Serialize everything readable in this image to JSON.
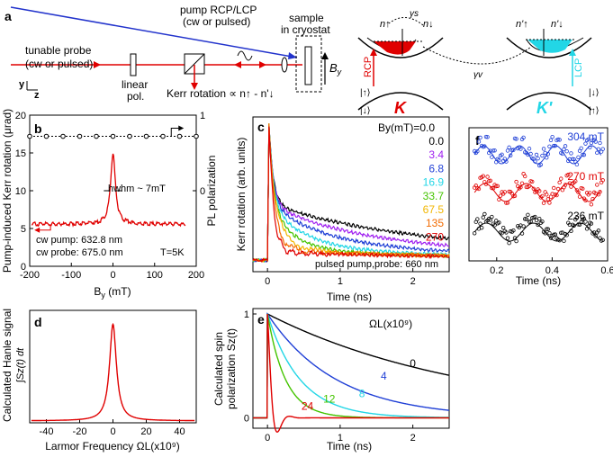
{
  "panel_labels": {
    "a": "a",
    "b": "b",
    "c": "c",
    "d": "d",
    "e": "e",
    "f": "f"
  },
  "panel_a": {
    "pump_label_1": "pump RCP/LCP",
    "pump_label_2": "(cw or pulsed)",
    "sample_label_1": "sample",
    "sample_label_2": "in cryostat",
    "probe_label_1": "tunable probe",
    "probe_label_2": "(cw or pulsed)",
    "linear_label_1": "linear",
    "linear_label_2": "pol.",
    "kerr_label": "Kerr rotation ∝ n↑ - n'↓",
    "field_label": "B",
    "field_sub": "y",
    "axis_y": "y",
    "axis_z": "z",
    "n_up": "n↑",
    "n_down": "n↓",
    "n_up_p": "n'↑",
    "n_down_p": "n'↓",
    "gamma_s": "γs",
    "gamma_v": "γv",
    "rcp": "RCP",
    "lcp": "LCP",
    "ket_up": "|↑⟩",
    "ket_down": "|↓⟩",
    "valley_k": "K",
    "valley_kp": "K'"
  },
  "panel_b": {
    "ylabel": "Pump-induced Kerr rotation (μrad)",
    "xlabel": "B",
    "xlabel_sub": "y",
    "xlabel_unit": " (mT)",
    "right_ylabel": "PL polarization",
    "annotation_hwhm": "hwhm ~ 7mT",
    "note_pump": "cw pump: 632.8 nm",
    "note_probe": "cw probe: 675.0 nm",
    "note_temp": "T=5K"
  },
  "panel_c": {
    "ylabel": "Kerr rotation (arb. units)",
    "xlabel": "Time (ns)",
    "legend_title": "By(mT)=0.0",
    "note": "pulsed pump,probe: 660 nm"
  },
  "panel_d": {
    "ylabel_1": "Calculated Hanle signal",
    "ylabel_2": "∫Sz(t) dt",
    "xlabel": "Larmor Frequency ΩL(x10⁹)"
  },
  "panel_e": {
    "ylabel_1": "Calculated spin",
    "ylabel_2": "polarization Sz(t)",
    "xlabel": "Time (ns)",
    "legend_title": "ΩL(x10⁹)"
  },
  "panel_f": {
    "xlabel": "Time (ns)"
  },
  "chart_data": [
    {
      "id": "b",
      "type": "line",
      "title": "",
      "xlabel": "By (mT)",
      "ylabel": "Pump-induced Kerr rotation (μrad)",
      "xlim": [
        -200,
        200
      ],
      "ylim": [
        0,
        20
      ],
      "xticks": [
        -200,
        -100,
        0,
        100,
        200
      ],
      "yticks": [
        0,
        5,
        10,
        15,
        20
      ],
      "right_axis": {
        "label": "PL polarization",
        "ylim": [
          -1,
          1
        ],
        "ticks": [
          -1,
          0,
          1
        ],
        "tick_labels": [
          "",
          "0",
          "1"
        ]
      },
      "series": [
        {
          "name": "Kerr rotation",
          "color": "#e00000",
          "model": "lorentzian",
          "baseline": 5.7,
          "amplitude": 9.3,
          "center": 0,
          "hwhm_mT": 7
        },
        {
          "name": "PL polarization",
          "color": "#000000",
          "axis": "right",
          "marker": "circle",
          "x": [
            -200,
            -160,
            -120,
            -80,
            -40,
            0,
            40,
            80,
            120,
            160,
            200
          ],
          "y": [
            0.72,
            0.72,
            0.72,
            0.72,
            0.72,
            0.72,
            0.72,
            0.72,
            0.72,
            0.72,
            0.72
          ]
        }
      ]
    },
    {
      "id": "c",
      "type": "line",
      "xlabel": "Time (ns)",
      "ylabel": "Kerr rotation (arb. units)",
      "xlim": [
        -0.2,
        2.5
      ],
      "xticks": [
        0,
        1,
        2
      ],
      "ylim": [
        -0.08,
        1.0
      ],
      "series": [
        {
          "name": "0.0",
          "color": "#000000",
          "field_mT": 0.0,
          "tau": 1.4,
          "floor": 0.24
        },
        {
          "name": "3.4",
          "color": "#a020f0",
          "field_mT": 3.4,
          "tau": 1.05,
          "floor": 0.16
        },
        {
          "name": "6.8",
          "color": "#1f3fd6",
          "field_mT": 6.8,
          "tau": 0.75,
          "floor": 0.11
        },
        {
          "name": "16.9",
          "color": "#22d6e6",
          "field_mT": 16.9,
          "tau": 0.5,
          "floor": 0.08
        },
        {
          "name": "33.7",
          "color": "#44c400",
          "field_mT": 33.7,
          "tau": 0.33,
          "floor": 0.07
        },
        {
          "name": "67.5",
          "color": "#f2b600",
          "field_mT": 67.5,
          "tau": 0.22,
          "floor": 0.07
        },
        {
          "name": "135",
          "color": "#f26a00",
          "field_mT": 135,
          "tau": 0.13,
          "floor": 0.07
        },
        {
          "name": "270",
          "color": "#e00000",
          "field_mT": 270,
          "tau": 0.07,
          "floor": 0.06
        }
      ]
    },
    {
      "id": "d",
      "type": "line",
      "xlabel": "Larmor Frequency ΩL(x10⁹)",
      "ylabel": "Calculated Hanle signal ∫Sz(t) dt",
      "xlim": [
        -50,
        50
      ],
      "xticks": [
        -40,
        -20,
        0,
        20,
        40
      ],
      "ylim": [
        0,
        1.05
      ],
      "series": [
        {
          "name": "Hanle",
          "color": "#e00000",
          "model": "lorentzian",
          "baseline": 0.02,
          "amplitude": 0.98,
          "center": 0,
          "hwhm": 2.5
        }
      ]
    },
    {
      "id": "e",
      "type": "line",
      "xlabel": "Time (ns)",
      "ylabel": "Calculated spin polarization Sz(t)",
      "xlim": [
        -0.2,
        2.5
      ],
      "xticks": [
        0,
        1,
        2
      ],
      "ylim": [
        -0.1,
        1.0
      ],
      "series": [
        {
          "name": "0",
          "color": "#000000",
          "omega": 0,
          "tau": 2.8
        },
        {
          "name": "4",
          "color": "#1f3fd6",
          "omega": 4,
          "tau": 0.95
        },
        {
          "name": "8",
          "color": "#22d6e6",
          "omega": 8,
          "tau": 0.45
        },
        {
          "name": "12",
          "color": "#44c400",
          "omega": 12,
          "tau": 0.25
        },
        {
          "name": "24",
          "color": "#e00000",
          "omega": 24,
          "tau": 0.075
        }
      ]
    },
    {
      "id": "f",
      "type": "scatter",
      "xlabel": "Time (ns)",
      "xlim": [
        0.1,
        0.6
      ],
      "xticks": [
        0.2,
        0.4,
        0.6
      ],
      "series": [
        {
          "name": "304 mT",
          "color": "#1f3fd6",
          "field_mT": 304,
          "period_ns": 0.13
        },
        {
          "name": "270 mT",
          "color": "#e00000",
          "field_mT": 270,
          "period_ns": 0.15
        },
        {
          "name": "236 mT",
          "color": "#000000",
          "field_mT": 236,
          "period_ns": 0.17
        }
      ]
    }
  ]
}
